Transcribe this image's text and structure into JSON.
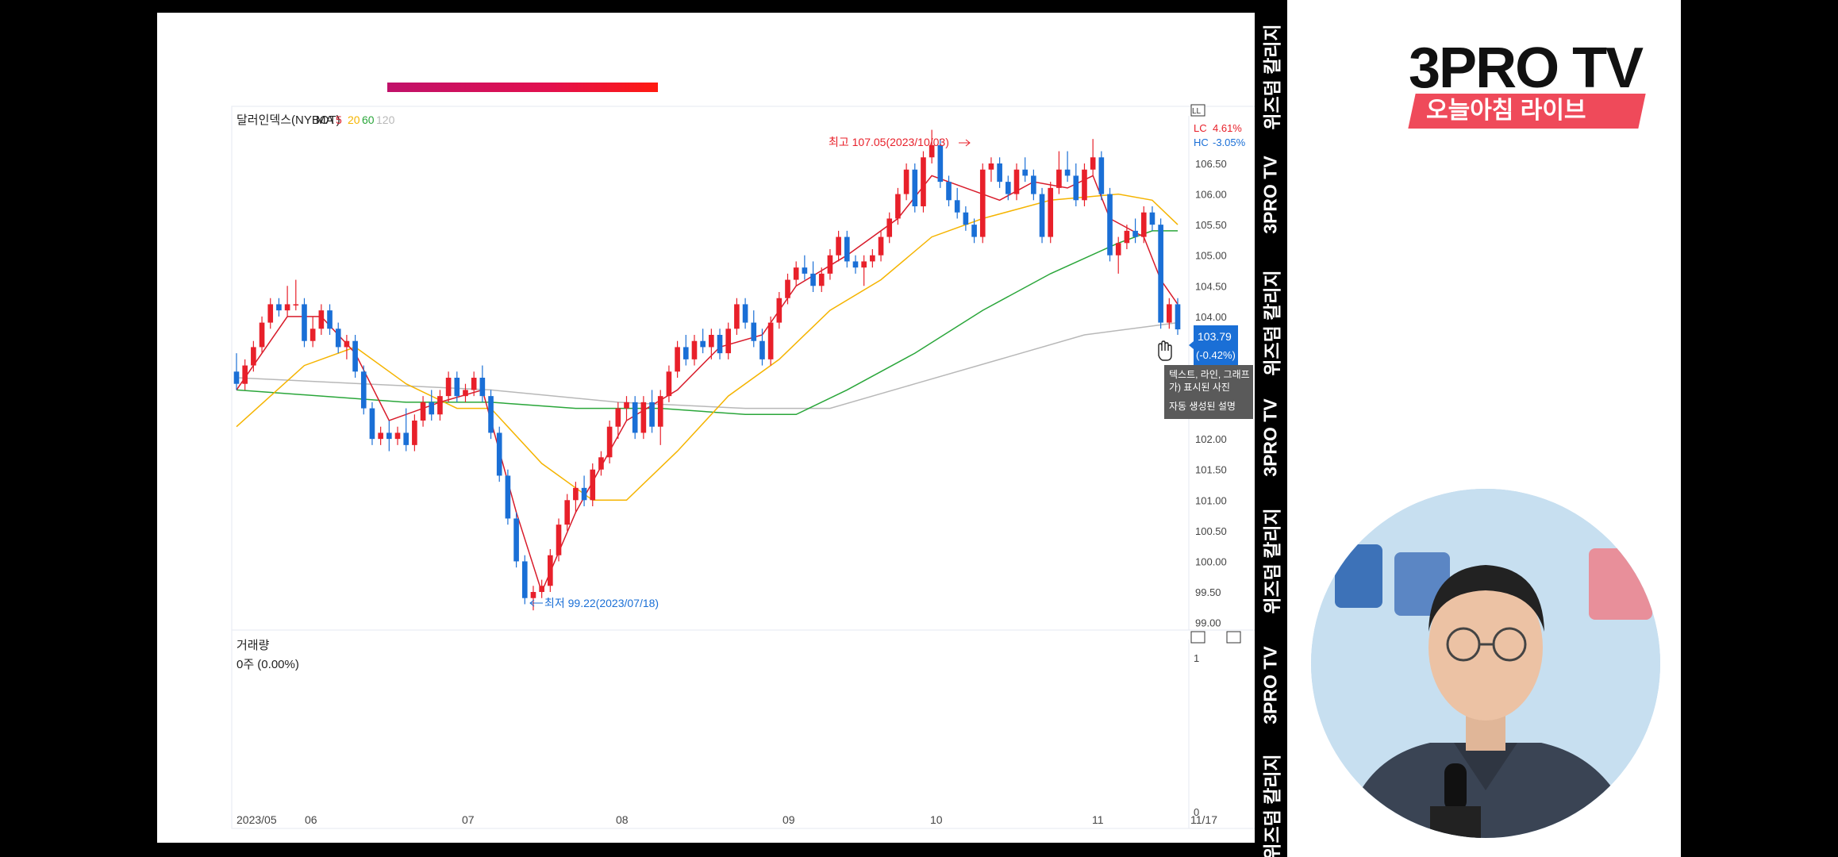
{
  "chart_data": [
    {
      "type": "candlestick",
      "title": "달러인덱스(NYBOT)",
      "ma_label": "MA",
      "ma_periods": [
        "5",
        "20",
        "60",
        "120"
      ],
      "ma_colors": [
        "#d81b2a",
        "#f5b400",
        "#2aa63a",
        "#b8b8b8"
      ],
      "up_color": "#e8202a",
      "down_color": "#1a6fd6",
      "x_ticks": [
        "2023/05",
        "06",
        "07",
        "08",
        "09",
        "10",
        "11",
        "11/17"
      ],
      "y_ticks": [
        "106.50",
        "106.00",
        "105.50",
        "105.00",
        "104.50",
        "104.00",
        "102.00",
        "101.50",
        "101.00",
        "100.50",
        "100.00",
        "99.50",
        "99.00"
      ],
      "ylim": [
        99.0,
        107.2
      ],
      "high_annotation": "최고 107.05(2023/10/03)",
      "low_annotation": "최저 99.22(2023/07/18)",
      "current_value": "103.79",
      "current_change": "(-0.42%)",
      "lc_label": "LC",
      "lc_value": "4.61%",
      "hc_label": "HC",
      "hc_value": "-3.05%",
      "lf_label": "LL",
      "candles": [
        {
          "o": 103.1,
          "h": 103.4,
          "l": 102.8,
          "c": 102.9
        },
        {
          "o": 102.9,
          "h": 103.3,
          "l": 102.8,
          "c": 103.2
        },
        {
          "o": 103.2,
          "h": 103.6,
          "l": 103.1,
          "c": 103.5
        },
        {
          "o": 103.5,
          "h": 104.0,
          "l": 103.4,
          "c": 103.9
        },
        {
          "o": 103.9,
          "h": 104.3,
          "l": 103.8,
          "c": 104.2
        },
        {
          "o": 104.2,
          "h": 104.3,
          "l": 104.0,
          "c": 104.1
        },
        {
          "o": 104.1,
          "h": 104.5,
          "l": 104.0,
          "c": 104.2
        },
        {
          "o": 104.2,
          "h": 104.6,
          "l": 104.1,
          "c": 104.2
        },
        {
          "o": 104.2,
          "h": 104.3,
          "l": 103.5,
          "c": 103.6
        },
        {
          "o": 103.6,
          "h": 104.0,
          "l": 103.5,
          "c": 103.8
        },
        {
          "o": 103.8,
          "h": 104.2,
          "l": 103.7,
          "c": 104.1
        },
        {
          "o": 104.1,
          "h": 104.2,
          "l": 103.7,
          "c": 103.8
        },
        {
          "o": 103.8,
          "h": 103.9,
          "l": 103.4,
          "c": 103.5
        },
        {
          "o": 103.5,
          "h": 103.7,
          "l": 103.3,
          "c": 103.6
        },
        {
          "o": 103.6,
          "h": 103.7,
          "l": 103.0,
          "c": 103.1
        },
        {
          "o": 103.1,
          "h": 103.2,
          "l": 102.4,
          "c": 102.5
        },
        {
          "o": 102.5,
          "h": 102.6,
          "l": 101.9,
          "c": 102.0
        },
        {
          "o": 102.0,
          "h": 102.2,
          "l": 101.9,
          "c": 102.1
        },
        {
          "o": 102.1,
          "h": 102.3,
          "l": 101.8,
          "c": 102.0
        },
        {
          "o": 102.0,
          "h": 102.2,
          "l": 101.9,
          "c": 102.1
        },
        {
          "o": 102.1,
          "h": 102.5,
          "l": 101.8,
          "c": 101.9
        },
        {
          "o": 101.9,
          "h": 102.4,
          "l": 101.8,
          "c": 102.3
        },
        {
          "o": 102.3,
          "h": 102.7,
          "l": 102.2,
          "c": 102.6
        },
        {
          "o": 102.6,
          "h": 102.8,
          "l": 102.3,
          "c": 102.4
        },
        {
          "o": 102.4,
          "h": 102.8,
          "l": 102.3,
          "c": 102.7
        },
        {
          "o": 102.7,
          "h": 103.1,
          "l": 102.6,
          "c": 103.0
        },
        {
          "o": 103.0,
          "h": 103.1,
          "l": 102.6,
          "c": 102.7
        },
        {
          "o": 102.7,
          "h": 102.9,
          "l": 102.6,
          "c": 102.8
        },
        {
          "o": 102.8,
          "h": 103.1,
          "l": 102.7,
          "c": 103.0
        },
        {
          "o": 103.0,
          "h": 103.2,
          "l": 102.6,
          "c": 102.7
        },
        {
          "o": 102.7,
          "h": 102.8,
          "l": 102.0,
          "c": 102.1
        },
        {
          "o": 102.1,
          "h": 102.2,
          "l": 101.3,
          "c": 101.4
        },
        {
          "o": 101.4,
          "h": 101.5,
          "l": 100.6,
          "c": 100.7
        },
        {
          "o": 100.7,
          "h": 100.8,
          "l": 99.9,
          "c": 100.0
        },
        {
          "o": 100.0,
          "h": 100.1,
          "l": 99.3,
          "c": 99.4
        },
        {
          "o": 99.4,
          "h": 99.6,
          "l": 99.2,
          "c": 99.5
        },
        {
          "o": 99.5,
          "h": 99.7,
          "l": 99.4,
          "c": 99.6
        },
        {
          "o": 99.6,
          "h": 100.2,
          "l": 99.5,
          "c": 100.1
        },
        {
          "o": 100.1,
          "h": 100.7,
          "l": 100.0,
          "c": 100.6
        },
        {
          "o": 100.6,
          "h": 101.1,
          "l": 100.5,
          "c": 101.0
        },
        {
          "o": 101.0,
          "h": 101.3,
          "l": 100.8,
          "c": 101.2
        },
        {
          "o": 101.2,
          "h": 101.4,
          "l": 100.9,
          "c": 101.0
        },
        {
          "o": 101.0,
          "h": 101.6,
          "l": 100.9,
          "c": 101.5
        },
        {
          "o": 101.5,
          "h": 101.8,
          "l": 101.4,
          "c": 101.7
        },
        {
          "o": 101.7,
          "h": 102.3,
          "l": 101.6,
          "c": 102.2
        },
        {
          "o": 102.2,
          "h": 102.6,
          "l": 102.0,
          "c": 102.5
        },
        {
          "o": 102.5,
          "h": 102.7,
          "l": 102.3,
          "c": 102.6
        },
        {
          "o": 102.6,
          "h": 102.7,
          "l": 102.0,
          "c": 102.1
        },
        {
          "o": 102.1,
          "h": 102.7,
          "l": 102.0,
          "c": 102.6
        },
        {
          "o": 102.6,
          "h": 102.8,
          "l": 102.1,
          "c": 102.2
        },
        {
          "o": 102.2,
          "h": 102.8,
          "l": 101.9,
          "c": 102.7
        },
        {
          "o": 102.7,
          "h": 103.2,
          "l": 102.6,
          "c": 103.1
        },
        {
          "o": 103.1,
          "h": 103.6,
          "l": 103.0,
          "c": 103.5
        },
        {
          "o": 103.5,
          "h": 103.7,
          "l": 103.2,
          "c": 103.3
        },
        {
          "o": 103.3,
          "h": 103.7,
          "l": 103.2,
          "c": 103.6
        },
        {
          "o": 103.6,
          "h": 103.8,
          "l": 103.4,
          "c": 103.5
        },
        {
          "o": 103.5,
          "h": 103.8,
          "l": 103.3,
          "c": 103.7
        },
        {
          "o": 103.7,
          "h": 103.8,
          "l": 103.3,
          "c": 103.4
        },
        {
          "o": 103.4,
          "h": 103.9,
          "l": 103.3,
          "c": 103.8
        },
        {
          "o": 103.8,
          "h": 104.3,
          "l": 103.7,
          "c": 104.2
        },
        {
          "o": 104.2,
          "h": 104.3,
          "l": 103.8,
          "c": 103.9
        },
        {
          "o": 103.9,
          "h": 104.1,
          "l": 103.5,
          "c": 103.6
        },
        {
          "o": 103.6,
          "h": 103.8,
          "l": 103.2,
          "c": 103.3
        },
        {
          "o": 103.3,
          "h": 104.0,
          "l": 103.2,
          "c": 103.9
        },
        {
          "o": 103.9,
          "h": 104.4,
          "l": 103.8,
          "c": 104.3
        },
        {
          "o": 104.3,
          "h": 104.7,
          "l": 104.2,
          "c": 104.6
        },
        {
          "o": 104.6,
          "h": 104.9,
          "l": 104.5,
          "c": 104.8
        },
        {
          "o": 104.8,
          "h": 105.0,
          "l": 104.6,
          "c": 104.7
        },
        {
          "o": 104.7,
          "h": 104.9,
          "l": 104.4,
          "c": 104.5
        },
        {
          "o": 104.5,
          "h": 104.8,
          "l": 104.4,
          "c": 104.7
        },
        {
          "o": 104.7,
          "h": 105.1,
          "l": 104.6,
          "c": 105.0
        },
        {
          "o": 105.0,
          "h": 105.4,
          "l": 104.9,
          "c": 105.3
        },
        {
          "o": 105.3,
          "h": 105.4,
          "l": 104.8,
          "c": 104.9
        },
        {
          "o": 104.9,
          "h": 105.0,
          "l": 104.7,
          "c": 104.8
        },
        {
          "o": 104.8,
          "h": 105.0,
          "l": 104.5,
          "c": 104.9
        },
        {
          "o": 104.9,
          "h": 105.1,
          "l": 104.8,
          "c": 105.0
        },
        {
          "o": 105.0,
          "h": 105.4,
          "l": 104.9,
          "c": 105.3
        },
        {
          "o": 105.3,
          "h": 105.7,
          "l": 105.2,
          "c": 105.6
        },
        {
          "o": 105.6,
          "h": 106.1,
          "l": 105.5,
          "c": 106.0
        },
        {
          "o": 106.0,
          "h": 106.5,
          "l": 105.9,
          "c": 106.4
        },
        {
          "o": 106.4,
          "h": 106.5,
          "l": 105.7,
          "c": 105.8
        },
        {
          "o": 105.8,
          "h": 106.7,
          "l": 105.7,
          "c": 106.6
        },
        {
          "o": 106.6,
          "h": 107.05,
          "l": 106.5,
          "c": 106.8
        },
        {
          "o": 106.8,
          "h": 106.9,
          "l": 106.1,
          "c": 106.2
        },
        {
          "o": 106.2,
          "h": 106.3,
          "l": 105.8,
          "c": 105.9
        },
        {
          "o": 105.9,
          "h": 106.1,
          "l": 105.6,
          "c": 105.7
        },
        {
          "o": 105.7,
          "h": 105.8,
          "l": 105.4,
          "c": 105.5
        },
        {
          "o": 105.5,
          "h": 105.6,
          "l": 105.2,
          "c": 105.3
        },
        {
          "o": 105.3,
          "h": 106.5,
          "l": 105.2,
          "c": 106.4
        },
        {
          "o": 106.4,
          "h": 106.6,
          "l": 106.2,
          "c": 106.5
        },
        {
          "o": 106.5,
          "h": 106.6,
          "l": 106.1,
          "c": 106.2
        },
        {
          "o": 106.2,
          "h": 106.3,
          "l": 105.9,
          "c": 106.0
        },
        {
          "o": 106.0,
          "h": 106.5,
          "l": 105.9,
          "c": 106.4
        },
        {
          "o": 106.4,
          "h": 106.6,
          "l": 106.2,
          "c": 106.3
        },
        {
          "o": 106.3,
          "h": 106.4,
          "l": 105.9,
          "c": 106.0
        },
        {
          "o": 106.0,
          "h": 106.1,
          "l": 105.2,
          "c": 105.3
        },
        {
          "o": 105.3,
          "h": 106.2,
          "l": 105.2,
          "c": 106.1
        },
        {
          "o": 106.1,
          "h": 106.7,
          "l": 106.0,
          "c": 106.4
        },
        {
          "o": 106.4,
          "h": 106.7,
          "l": 106.2,
          "c": 106.3
        },
        {
          "o": 106.3,
          "h": 106.5,
          "l": 105.8,
          "c": 105.9
        },
        {
          "o": 105.9,
          "h": 106.5,
          "l": 105.8,
          "c": 106.4
        },
        {
          "o": 106.4,
          "h": 106.9,
          "l": 106.3,
          "c": 106.6
        },
        {
          "o": 106.6,
          "h": 106.7,
          "l": 105.9,
          "c": 106.0
        },
        {
          "o": 106.0,
          "h": 106.1,
          "l": 104.9,
          "c": 105.0
        },
        {
          "o": 105.0,
          "h": 105.3,
          "l": 104.7,
          "c": 105.2
        },
        {
          "o": 105.2,
          "h": 105.5,
          "l": 105.1,
          "c": 105.4
        },
        {
          "o": 105.4,
          "h": 105.6,
          "l": 105.2,
          "c": 105.3
        },
        {
          "o": 105.3,
          "h": 105.8,
          "l": 105.2,
          "c": 105.7
        },
        {
          "o": 105.7,
          "h": 105.8,
          "l": 105.4,
          "c": 105.5
        },
        {
          "o": 105.5,
          "h": 105.6,
          "l": 103.8,
          "c": 103.9
        },
        {
          "o": 103.9,
          "h": 104.3,
          "l": 103.8,
          "c": 104.2
        },
        {
          "o": 104.2,
          "h": 104.3,
          "l": 103.7,
          "c": 103.79
        }
      ],
      "ma_series": {
        "ma5": [
          [
            0,
            102.8
          ],
          [
            6,
            104.0
          ],
          [
            10,
            104.0
          ],
          [
            14,
            103.4
          ],
          [
            18,
            102.3
          ],
          [
            24,
            102.6
          ],
          [
            29,
            102.8
          ],
          [
            33,
            100.8
          ],
          [
            36,
            99.5
          ],
          [
            40,
            100.8
          ],
          [
            46,
            102.3
          ],
          [
            52,
            102.8
          ],
          [
            57,
            103.5
          ],
          [
            62,
            103.7
          ],
          [
            66,
            104.5
          ],
          [
            72,
            105.0
          ],
          [
            78,
            105.6
          ],
          [
            82,
            106.3
          ],
          [
            86,
            106.1
          ],
          [
            90,
            105.9
          ],
          [
            94,
            106.2
          ],
          [
            98,
            106.1
          ],
          [
            101,
            106.3
          ],
          [
            103,
            105.6
          ],
          [
            107,
            105.3
          ],
          [
            109,
            104.6
          ],
          [
            111,
            104.2
          ]
        ],
        "ma20": [
          [
            0,
            102.2
          ],
          [
            8,
            103.2
          ],
          [
            14,
            103.5
          ],
          [
            20,
            102.9
          ],
          [
            26,
            102.5
          ],
          [
            30,
            102.5
          ],
          [
            36,
            101.6
          ],
          [
            42,
            101.0
          ],
          [
            46,
            101.0
          ],
          [
            52,
            101.8
          ],
          [
            58,
            102.7
          ],
          [
            64,
            103.3
          ],
          [
            70,
            104.1
          ],
          [
            76,
            104.6
          ],
          [
            82,
            105.3
          ],
          [
            88,
            105.6
          ],
          [
            96,
            105.9
          ],
          [
            104,
            106.0
          ],
          [
            108,
            105.9
          ],
          [
            111,
            105.5
          ]
        ],
        "ma60": [
          [
            0,
            102.8
          ],
          [
            10,
            102.7
          ],
          [
            20,
            102.6
          ],
          [
            30,
            102.6
          ],
          [
            40,
            102.5
          ],
          [
            50,
            102.5
          ],
          [
            60,
            102.4
          ],
          [
            66,
            102.4
          ],
          [
            72,
            102.8
          ],
          [
            80,
            103.4
          ],
          [
            88,
            104.1
          ],
          [
            96,
            104.7
          ],
          [
            104,
            105.2
          ],
          [
            108,
            105.4
          ],
          [
            111,
            105.4
          ]
        ],
        "ma120": [
          [
            0,
            103.0
          ],
          [
            15,
            102.9
          ],
          [
            30,
            102.8
          ],
          [
            45,
            102.6
          ],
          [
            60,
            102.5
          ],
          [
            70,
            102.5
          ],
          [
            80,
            102.9
          ],
          [
            90,
            103.3
          ],
          [
            100,
            103.7
          ],
          [
            111,
            103.9
          ]
        ]
      }
    },
    {
      "type": "bar",
      "title": "거래량",
      "value_label": "0주 (0.00%)",
      "y_ticks": [
        "1",
        "0"
      ]
    }
  ],
  "tooltip": {
    "line1": "텍스트, 라인, 그래프",
    "line2": "가) 표시된 사진",
    "line3": "자동 생성된 설명"
  },
  "channel": {
    "logo_main": "3PRO TV",
    "logo_sub": "오늘아침 라이브"
  },
  "side_strip": {
    "labels": [
      "위즈덤 칼리지",
      "3PRO TV",
      "위즈덤 칼리지",
      "3PRO TV",
      "위즈덤 칼리지",
      "3PRO TV",
      "위즈덤 칼리지"
    ]
  }
}
